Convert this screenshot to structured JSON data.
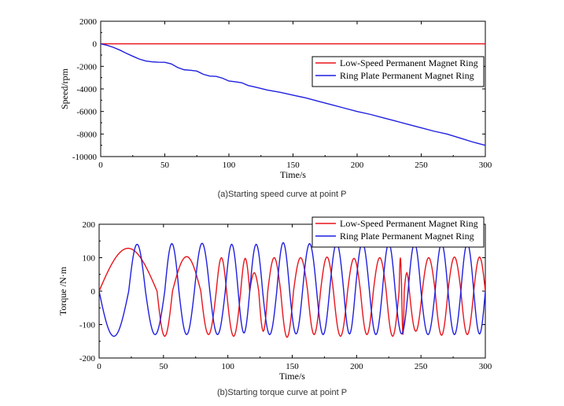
{
  "chart_data": [
    {
      "type": "line",
      "caption": "(a)Starting speed curve at point P",
      "xlabel": "Time/s",
      "ylabel": "Speed/rpm",
      "xlim": [
        0,
        300
      ],
      "ylim": [
        -10000,
        2000
      ],
      "xticks": [
        0,
        50,
        100,
        150,
        200,
        250,
        300
      ],
      "yticks": [
        -10000,
        -8000,
        -6000,
        -4000,
        -2000,
        0,
        2000
      ],
      "legend": "right",
      "series": [
        {
          "name": "Low-Speed Permanent Magnet Ring",
          "color": "#e8141c",
          "x": [
            0,
            300
          ],
          "y": [
            0,
            0
          ]
        },
        {
          "name": "Ring Plate Permanent Magnet Ring",
          "color": "#1f1fe0",
          "x": [
            0,
            5,
            10,
            15,
            20,
            25,
            30,
            35,
            40,
            45,
            50,
            55,
            60,
            65,
            70,
            75,
            80,
            85,
            90,
            95,
            100,
            105,
            110,
            115,
            120,
            125,
            130,
            140,
            150,
            160,
            170,
            180,
            190,
            200,
            210,
            220,
            230,
            240,
            250,
            260,
            270,
            280,
            290,
            295,
            300
          ],
          "y": [
            0,
            -130,
            -320,
            -560,
            -840,
            -1100,
            -1350,
            -1520,
            -1600,
            -1630,
            -1640,
            -1780,
            -2100,
            -2300,
            -2350,
            -2420,
            -2700,
            -2860,
            -2890,
            -3050,
            -3300,
            -3370,
            -3450,
            -3700,
            -3820,
            -3960,
            -4100,
            -4300,
            -4550,
            -4800,
            -5100,
            -5400,
            -5700,
            -6000,
            -6250,
            -6550,
            -6850,
            -7150,
            -7450,
            -7750,
            -8000,
            -8350,
            -8700,
            -8850,
            -9000
          ]
        }
      ]
    },
    {
      "type": "line",
      "caption": "(b)Starting torque curve at point P",
      "xlabel": "Time/s",
      "ylabel": "Torque /N·m",
      "xlim": [
        0,
        300
      ],
      "ylim": [
        -200,
        200
      ],
      "xticks": [
        0,
        50,
        100,
        150,
        200,
        250,
        300
      ],
      "yticks": [
        -200,
        -100,
        0,
        100,
        200
      ],
      "legend": "top-right",
      "series": [
        {
          "name": "Low-Speed Permanent Magnet Ring",
          "color": "#e8141c",
          "zero_crossings": [
            0,
            45,
            57,
            79,
            91,
            99,
            110,
            117,
            124,
            131,
            141,
            151,
            162,
            172,
            182,
            193,
            203,
            213,
            223,
            233,
            235,
            237,
            241,
            251,
            261,
            271,
            281,
            291,
            300
          ],
          "peaks": [
            128,
            -135,
            103,
            -130,
            100,
            -135,
            98,
            55,
            -120,
            100,
            -138,
            100,
            -130,
            102,
            -135,
            98,
            -130,
            100,
            -135,
            100,
            -130,
            55,
            -120,
            100,
            -132,
            102,
            -130,
            102
          ],
          "start_flat": 3
        },
        {
          "name": "Ring Plate Permanent Magnet Ring",
          "color": "#1f1fe0",
          "zero_crossings": [
            0,
            23,
            36,
            51,
            62,
            74,
            86,
            98,
            108,
            117,
            127,
            138,
            148,
            158,
            169,
            179,
            190,
            199,
            210,
            220,
            230,
            240,
            250,
            261,
            271,
            281,
            291,
            300
          ],
          "peaks": [
            -135,
            140,
            -130,
            142,
            -130,
            143,
            -130,
            140,
            -125,
            140,
            -130,
            145,
            -128,
            142,
            -130,
            143,
            -128,
            145,
            -130,
            143,
            -128,
            143,
            -130,
            143,
            -130,
            143,
            -128
          ],
          "start_flat": 3
        }
      ]
    }
  ]
}
